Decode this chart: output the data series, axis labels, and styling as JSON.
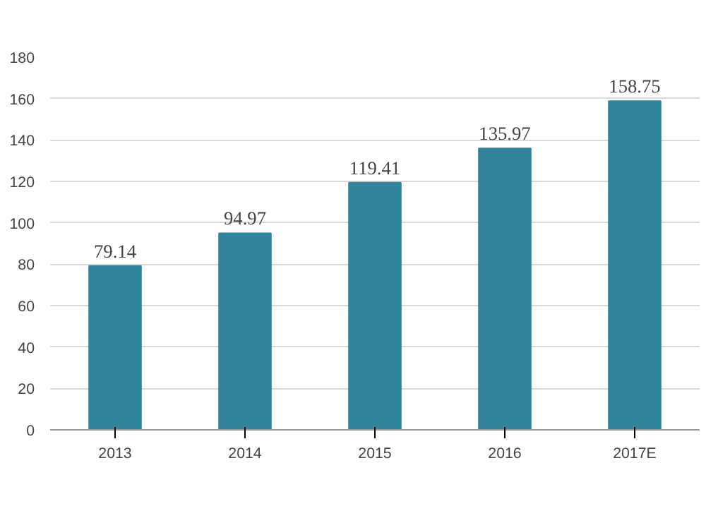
{
  "chart_data": {
    "type": "bar",
    "categories": [
      "2013",
      "2014",
      "2015",
      "2016",
      "2017E"
    ],
    "values": [
      79.14,
      94.97,
      119.41,
      135.97,
      158.75
    ],
    "color": "#31849b",
    "ylim": [
      0,
      180
    ],
    "yticks": [
      0,
      20,
      40,
      60,
      80,
      100,
      120,
      140,
      160,
      180
    ],
    "grid": "y",
    "data_labels": true
  }
}
